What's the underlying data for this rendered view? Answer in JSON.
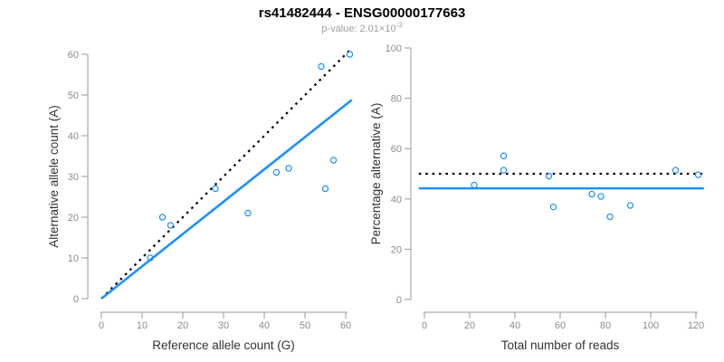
{
  "figure": {
    "title": "rs41482444 - ENSG00000177663",
    "subtitle_prefix": "p-value: 2.01×10",
    "subtitle_exponent": "-3"
  },
  "colors": {
    "accent_blue": "#1E90FF",
    "dotted_line_black": "#000000",
    "axis_line_gray": "#9a9a9a",
    "tick_label_gray": "#8c8c8c",
    "axis_title_dark": "#333333",
    "subtitle_gray": "#9e9e9e"
  },
  "chart_data": [
    {
      "name": "allele-count-scatter",
      "type": "scatter",
      "xlabel": "Reference allele count (G)",
      "ylabel": "Alternative allele count (A)",
      "xlim": [
        0,
        60
      ],
      "ylim": [
        0,
        60
      ],
      "xticks": [
        0,
        10,
        20,
        30,
        40,
        50,
        60
      ],
      "yticks": [
        0,
        10,
        20,
        30,
        40,
        50,
        60
      ],
      "grid": false,
      "legend": "none",
      "point_color": "#1E90FF",
      "points": [
        [
          12,
          10
        ],
        [
          15,
          20
        ],
        [
          17,
          18
        ],
        [
          28,
          27
        ],
        [
          36,
          21
        ],
        [
          43,
          31
        ],
        [
          46,
          32
        ],
        [
          54,
          57
        ],
        [
          55,
          27
        ],
        [
          57,
          34
        ],
        [
          61,
          60
        ]
      ],
      "lines": [
        {
          "name": "identity-line",
          "style": "dotted",
          "color": "#000000",
          "from": [
            0,
            0
          ],
          "to": [
            61,
            61
          ]
        },
        {
          "name": "fit-line",
          "style": "solid",
          "color": "#1E90FF",
          "from": [
            0,
            0
          ],
          "to": [
            61.5,
            48.8
          ]
        }
      ]
    },
    {
      "name": "percentage-vs-reads-scatter",
      "type": "scatter",
      "xlabel": "Total number of reads",
      "ylabel": "Percentage alternative (A)",
      "xlim": [
        0,
        120
      ],
      "ylim": [
        0,
        100
      ],
      "xticks": [
        0,
        20,
        40,
        60,
        80,
        100,
        120
      ],
      "yticks": [
        0,
        20,
        40,
        60,
        80,
        100
      ],
      "grid": false,
      "legend": "none",
      "point_color": "#1E90FF",
      "points": [
        [
          22,
          45.5
        ],
        [
          35,
          57.1
        ],
        [
          35,
          51.4
        ],
        [
          55,
          49.1
        ],
        [
          57,
          36.8
        ],
        [
          74,
          41.9
        ],
        [
          78,
          41.0
        ],
        [
          82,
          32.9
        ],
        [
          91,
          37.4
        ],
        [
          111,
          51.4
        ],
        [
          121,
          49.6
        ]
      ],
      "lines": [
        {
          "name": "expected-50pct-line",
          "style": "dotted",
          "color": "#000000",
          "hline": 50
        },
        {
          "name": "mean-percentage-line",
          "style": "solid",
          "color": "#1E90FF",
          "hline": 44.2
        }
      ]
    }
  ]
}
